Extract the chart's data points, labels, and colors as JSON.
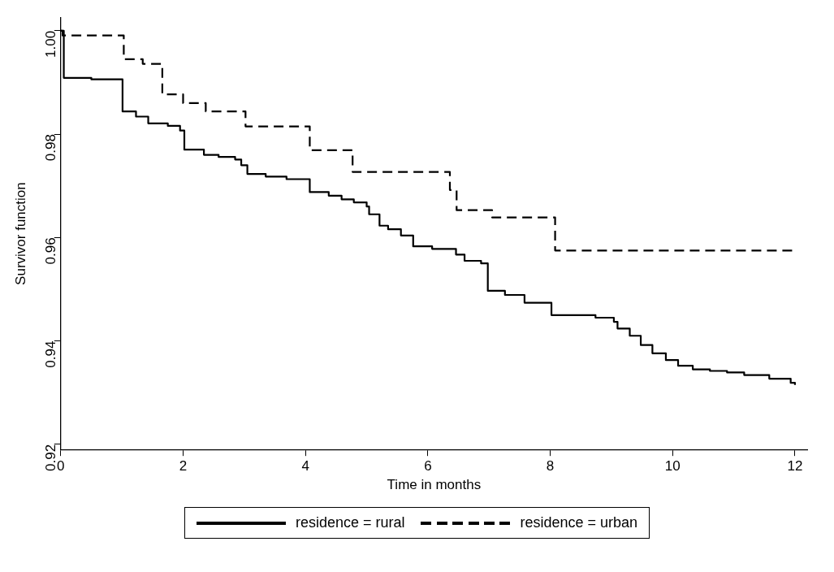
{
  "chart_data": {
    "type": "step",
    "xlabel": "Time in months",
    "ylabel": "Survivor function",
    "xlim": [
      0,
      12.2
    ],
    "ylim": [
      0.919,
      1.0025
    ],
    "xticks": [
      0,
      2,
      4,
      6,
      8,
      10,
      12
    ],
    "yticks": [
      {
        "value": 0.92,
        "label": "0.92"
      },
      {
        "value": 0.94,
        "label": "0.94"
      },
      {
        "value": 0.96,
        "label": "0.96"
      },
      {
        "value": 0.98,
        "label": "0.98"
      },
      {
        "value": 1,
        "label": "1.00"
      }
    ],
    "legend": "bottom",
    "marker": "none",
    "series": [
      {
        "name": "residence = rural",
        "color": "#000000",
        "line_style": "solid",
        "x": [
          0,
          0.05,
          0.5,
          1.01,
          1.23,
          1.43,
          1.75,
          1.95,
          2.02,
          2.34,
          2.58,
          2.85,
          2.95,
          3.05,
          3.35,
          3.69,
          4.07,
          4.38,
          4.59,
          4.79,
          5.0,
          5.04,
          5.21,
          5.35,
          5.56,
          5.76,
          6.07,
          6.46,
          6.6,
          6.87,
          6.98,
          7.26,
          7.58,
          8.02,
          8.74,
          9.04,
          9.1,
          9.3,
          9.48,
          9.67,
          9.89,
          10.09,
          10.33,
          10.61,
          10.89,
          11.17,
          11.58,
          11.93,
          12
        ],
        "values": [
          1,
          0.9909,
          0.9906,
          0.9844,
          0.9834,
          0.9821,
          0.9816,
          0.9807,
          0.977,
          0.976,
          0.9756,
          0.9751,
          0.974,
          0.9723,
          0.9718,
          0.9713,
          0.9688,
          0.9681,
          0.9674,
          0.9668,
          0.966,
          0.9645,
          0.9623,
          0.9616,
          0.9604,
          0.9583,
          0.9578,
          0.9567,
          0.9555,
          0.955,
          0.9497,
          0.9489,
          0.9474,
          0.945,
          0.9445,
          0.9437,
          0.9424,
          0.941,
          0.9392,
          0.9376,
          0.9363,
          0.9352,
          0.9345,
          0.9342,
          0.9339,
          0.9334,
          0.9327,
          0.9319,
          0.9315
        ]
      },
      {
        "name": "residence = urban",
        "color": "#000000",
        "line_style": "dashed",
        "x": [
          0,
          0.03,
          1.03,
          1.34,
          1.66,
          2.0,
          2.37,
          3.02,
          4.07,
          4.77,
          6.36,
          6.47,
          7.05,
          8.08,
          12
        ],
        "values": [
          1,
          0.9991,
          0.9945,
          0.9936,
          0.9877,
          0.986,
          0.9844,
          0.9815,
          0.9769,
          0.9727,
          0.9692,
          0.9653,
          0.9639,
          0.9575,
          0.9575
        ]
      }
    ]
  }
}
